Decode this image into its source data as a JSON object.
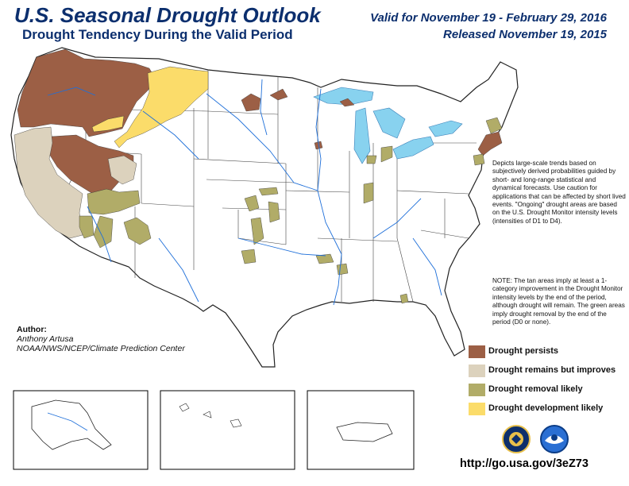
{
  "header": {
    "title": "U.S. Seasonal Drought Outlook",
    "subtitle": "Drought Tendency During the Valid Period",
    "valid": "Valid for November 19 - February 29, 2016",
    "released": "Released November 19, 2015"
  },
  "description": "Depicts large-scale trends based on subjectively derived probabilities guided by short- and long-range statistical and dynamical forecasts. Use caution for applications that can be affected by short lived events. \"Ongoing\" drought areas are based on the U.S. Drought Monitor intensity levels (intensities of D1 to D4).",
  "note": "NOTE: The tan areas imply at least a 1-category improvement in the Drought Monitor intensity levels by the end of the period, although drought will remain. The green areas imply drought removal by the end of the period (D0 or none).",
  "author": {
    "heading": "Author:",
    "name": "Anthony Artusa",
    "org": "NOAA/NWS/NCEP/Climate Prediction Center"
  },
  "legend": [
    {
      "label": "Drought persists",
      "color": "#9c5f45"
    },
    {
      "label": "Drought remains but improves",
      "color": "#dcd2bd"
    },
    {
      "label": "Drought removal likely",
      "color": "#b1ac68"
    },
    {
      "label": "Drought development likely",
      "color": "#fbdc6a"
    }
  ],
  "url": "http://go.usa.gov/3eZ73",
  "colors": {
    "title": "#0c2f6e",
    "water": "#88d2ef",
    "rivers": "#1e6fd9",
    "persists": "#9c5f45",
    "improves": "#dcd2bd",
    "removal": "#b1ac68",
    "development": "#fbdc6a"
  },
  "logos": [
    "doc-seal-icon",
    "noaa-logo-icon"
  ]
}
